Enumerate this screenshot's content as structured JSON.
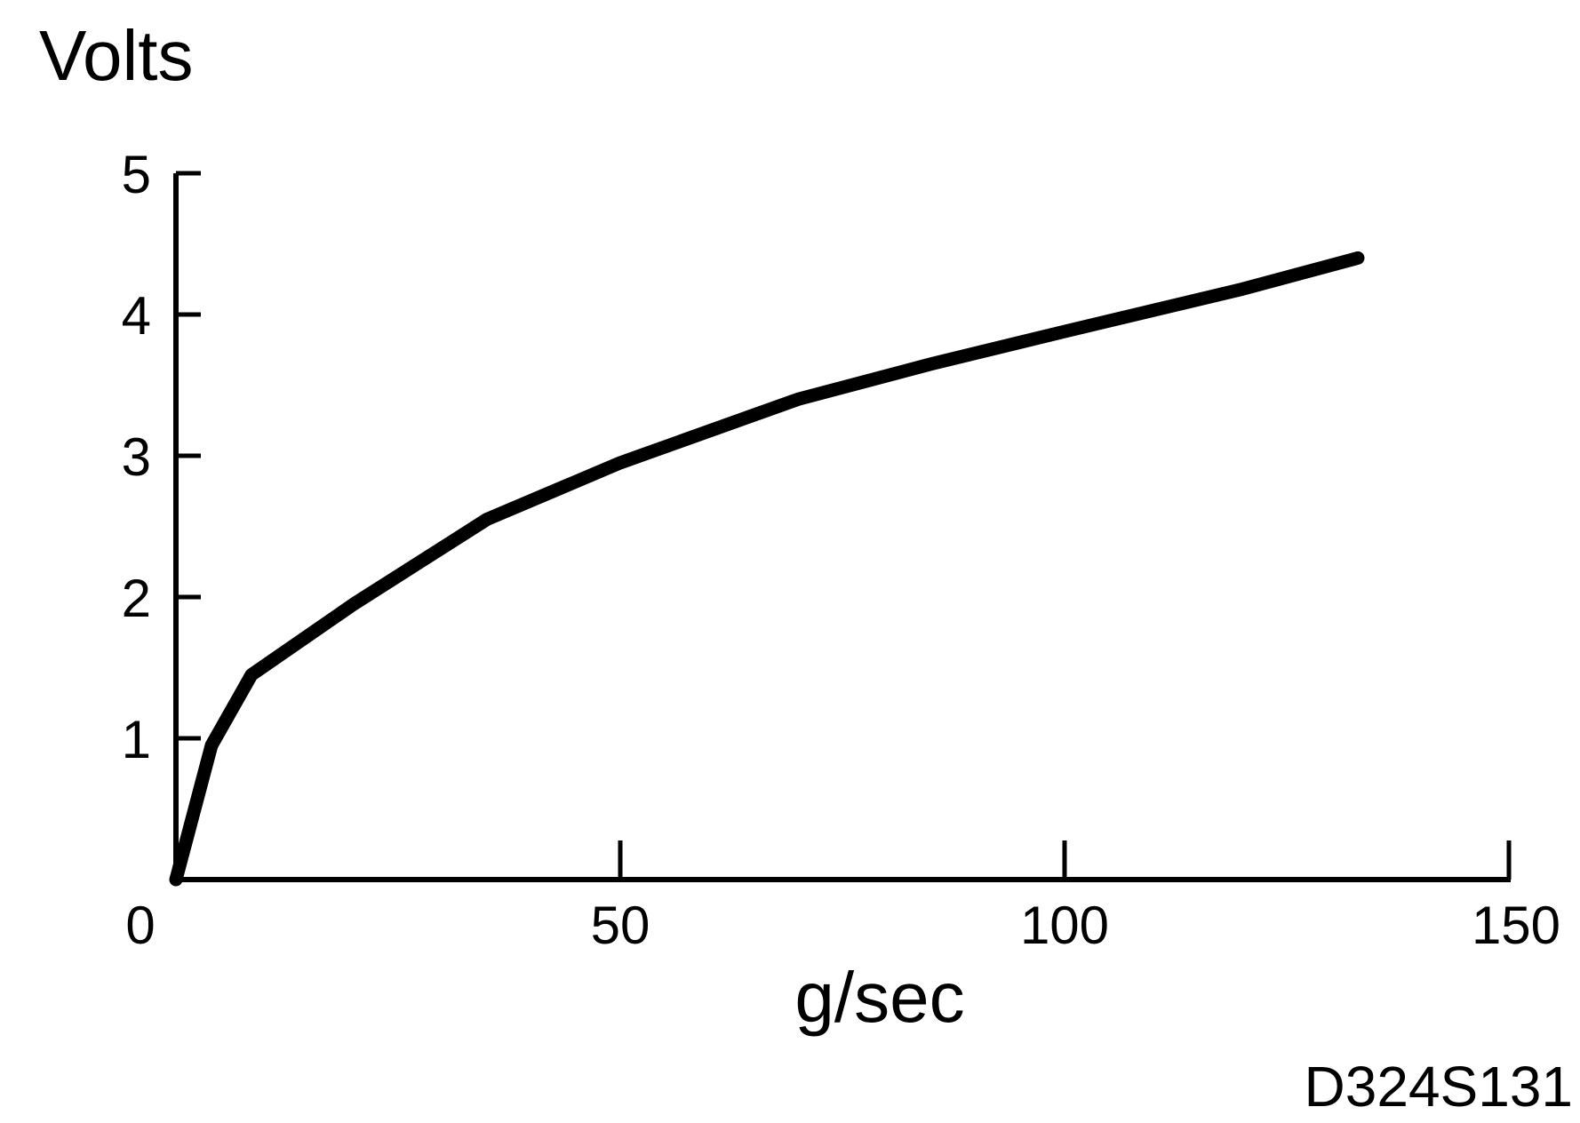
{
  "chart_data": {
    "type": "line",
    "title": "",
    "xlabel": "g/sec",
    "ylabel": "Volts",
    "xlim": [
      0,
      150
    ],
    "ylim": [
      0,
      5
    ],
    "x_ticks": [
      0,
      50,
      100,
      150
    ],
    "y_ticks": [
      1,
      2,
      3,
      4,
      5
    ],
    "grid": false,
    "legend": "none",
    "series": [
      {
        "x": [
          0,
          4,
          8.5,
          20,
          35,
          50,
          70,
          85,
          100,
          120,
          133
        ],
        "y": [
          0,
          0.95,
          1.45,
          1.95,
          2.55,
          2.95,
          3.4,
          3.65,
          3.88,
          4.18,
          4.4
        ]
      }
    ],
    "figure_id": "D324S131"
  },
  "colors": {
    "line": "#000000",
    "axis": "#000000",
    "background": "#ffffff"
  }
}
